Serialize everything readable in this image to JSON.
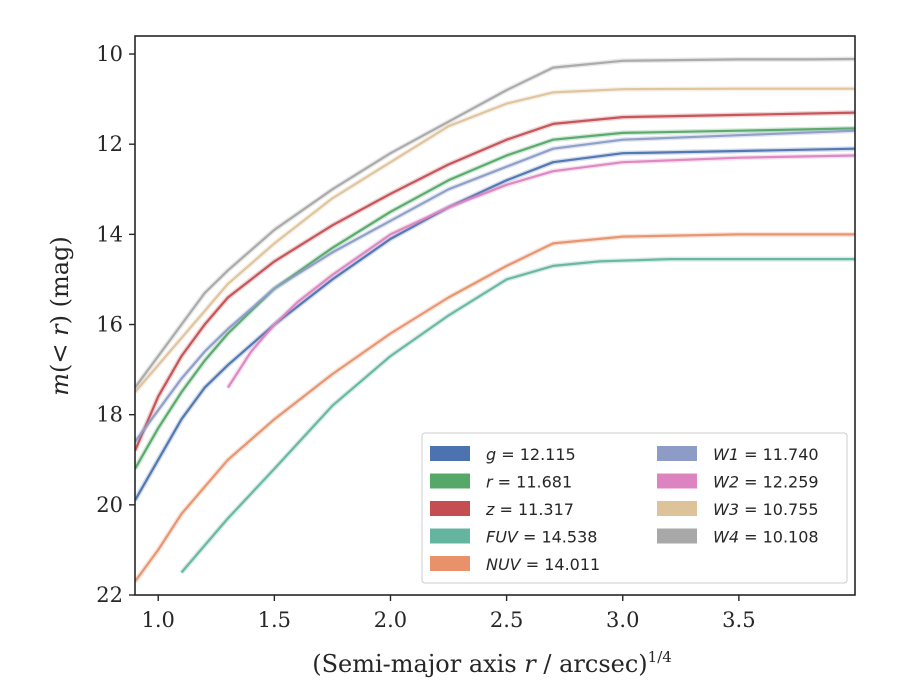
{
  "chart_data": {
    "type": "line",
    "xlabel_main": "(Semi-major axis ",
    "xlabel_var": "r",
    "xlabel_rest": " / arcsec)",
    "xlabel_sup": "1/4",
    "ylabel_main": "m",
    "ylabel_paren": "(< ",
    "ylabel_var": "r",
    "ylabel_rest": ") (mag)",
    "xlim": [
      0.9,
      4.0
    ],
    "ylim": [
      22,
      9.6
    ],
    "y_inverted": true,
    "x_ticks": [
      "1.0",
      "1.5",
      "2.0",
      "2.5",
      "3.0",
      "3.5"
    ],
    "y_ticks": [
      "10",
      "12",
      "14",
      "16",
      "18",
      "20",
      "22"
    ],
    "legend_placement": "lower-right",
    "series": [
      {
        "name": "g",
        "value_text": "= 12.115",
        "color": "#4c72b0",
        "x": [
          0.9,
          1.0,
          1.1,
          1.2,
          1.3,
          1.5,
          1.75,
          2.0,
          2.25,
          2.5,
          2.7,
          3.0,
          3.5,
          4.0
        ],
        "y": [
          19.9,
          19.0,
          18.1,
          17.4,
          16.9,
          16.0,
          15.0,
          14.1,
          13.4,
          12.8,
          12.4,
          12.2,
          12.15,
          12.1
        ]
      },
      {
        "name": "r",
        "value_text": "= 11.681",
        "color": "#55a868",
        "x": [
          0.9,
          1.0,
          1.1,
          1.2,
          1.3,
          1.5,
          1.75,
          2.0,
          2.25,
          2.5,
          2.7,
          3.0,
          3.5,
          4.0
        ],
        "y": [
          19.2,
          18.3,
          17.5,
          16.8,
          16.2,
          15.2,
          14.3,
          13.5,
          12.8,
          12.25,
          11.9,
          11.75,
          11.7,
          11.65
        ]
      },
      {
        "name": "z",
        "value_text": "= 11.317",
        "color": "#c44e52",
        "x": [
          0.9,
          1.0,
          1.1,
          1.2,
          1.3,
          1.5,
          1.75,
          2.0,
          2.25,
          2.5,
          2.7,
          3.0,
          3.5,
          4.0
        ],
        "y": [
          18.8,
          17.6,
          16.7,
          16.0,
          15.4,
          14.6,
          13.8,
          13.1,
          12.45,
          11.9,
          11.55,
          11.4,
          11.35,
          11.3
        ]
      },
      {
        "name": "FUV",
        "value_text": "= 14.538",
        "color": "#64b5a0",
        "x": [
          1.1,
          1.2,
          1.3,
          1.5,
          1.75,
          2.0,
          2.25,
          2.5,
          2.7,
          2.9,
          3.2,
          3.5,
          4.0
        ],
        "y": [
          21.5,
          20.9,
          20.3,
          19.2,
          17.8,
          16.7,
          15.8,
          15.0,
          14.7,
          14.6,
          14.55,
          14.55,
          14.55
        ]
      },
      {
        "name": "NUV",
        "value_text": "= 14.011",
        "color": "#e8916a",
        "x": [
          0.9,
          1.0,
          1.1,
          1.2,
          1.3,
          1.5,
          1.75,
          2.0,
          2.25,
          2.5,
          2.7,
          3.0,
          3.5,
          4.0
        ],
        "y": [
          21.7,
          21.0,
          20.2,
          19.6,
          19.0,
          18.1,
          17.1,
          16.2,
          15.4,
          14.7,
          14.2,
          14.05,
          14.0,
          14.0
        ]
      },
      {
        "name": "W1",
        "value_text": "= 11.740",
        "color": "#8c9cc7",
        "x": [
          0.9,
          1.0,
          1.1,
          1.2,
          1.3,
          1.5,
          1.75,
          2.0,
          2.25,
          2.5,
          2.7,
          3.0,
          3.5,
          4.0
        ],
        "y": [
          18.6,
          17.9,
          17.2,
          16.6,
          16.1,
          15.2,
          14.4,
          13.7,
          13.0,
          12.5,
          12.1,
          11.9,
          11.8,
          11.7
        ]
      },
      {
        "name": "W2",
        "value_text": "= 12.259",
        "color": "#dd84c0",
        "x": [
          1.3,
          1.4,
          1.5,
          1.6,
          1.75,
          2.0,
          2.25,
          2.5,
          2.7,
          3.0,
          3.5,
          4.0
        ],
        "y": [
          17.4,
          16.6,
          16.0,
          15.5,
          14.9,
          14.0,
          13.4,
          12.9,
          12.6,
          12.4,
          12.3,
          12.25
        ]
      },
      {
        "name": "W3",
        "value_text": "= 10.755",
        "color": "#dec29a",
        "x": [
          0.9,
          1.0,
          1.1,
          1.2,
          1.3,
          1.5,
          1.75,
          2.0,
          2.25,
          2.5,
          2.7,
          3.0,
          3.5,
          4.0
        ],
        "y": [
          17.5,
          16.9,
          16.3,
          15.7,
          15.1,
          14.2,
          13.2,
          12.4,
          11.6,
          11.1,
          10.85,
          10.78,
          10.77,
          10.77
        ]
      },
      {
        "name": "W4",
        "value_text": "= 10.108",
        "color": "#a8a8a8",
        "x": [
          0.9,
          1.0,
          1.1,
          1.2,
          1.3,
          1.5,
          1.75,
          2.0,
          2.25,
          2.5,
          2.7,
          3.0,
          3.5,
          3.8,
          4.0
        ],
        "y": [
          17.4,
          16.7,
          16.0,
          15.3,
          14.8,
          13.9,
          13.0,
          12.2,
          11.5,
          10.8,
          10.3,
          10.15,
          10.12,
          10.12,
          10.11
        ]
      }
    ],
    "legend_order": [
      "g",
      "r",
      "z",
      "FUV",
      "NUV",
      "W1",
      "W2",
      "W3",
      "W4"
    ]
  }
}
